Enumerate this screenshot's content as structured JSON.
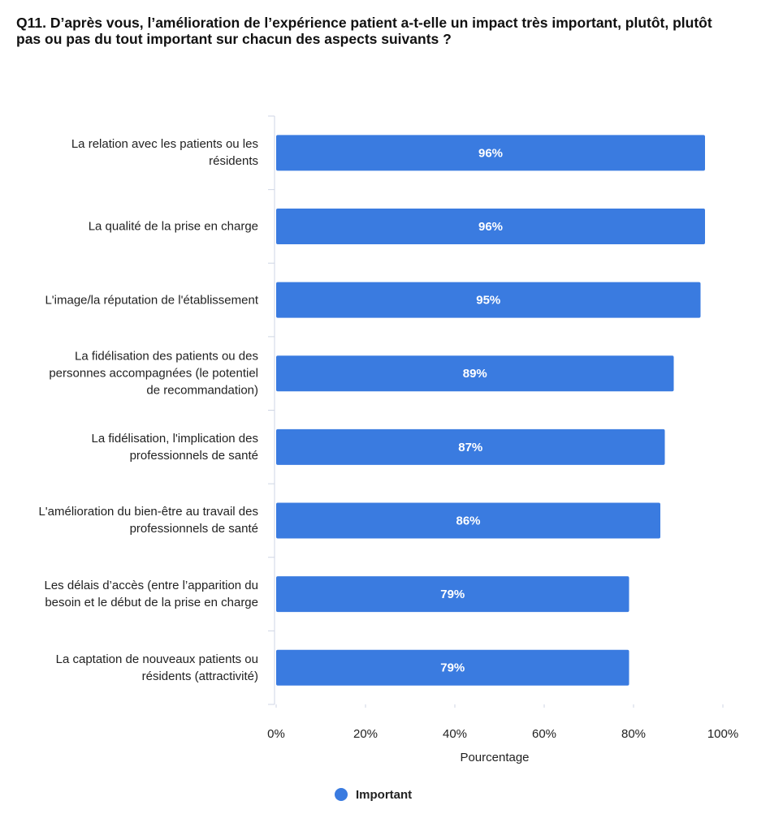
{
  "chart_data": {
    "type": "bar",
    "orientation": "horizontal",
    "title": "Q11. D’après vous, l’amélioration de l’expérience patient a-t-elle un impact très important, plutôt, plutôt pas ou pas du tout important sur chacun des aspects suivants ?",
    "x_label": "Pourcentage",
    "categories": [
      "La relation avec les patients ou les résidents",
      "La qualité de la prise en charge",
      "L'image/la réputation de l'établissement",
      "La fidélisation des patients ou des personnes accompagnées (le potentiel de recommandation)",
      "La fidélisation, l'implication des professionnels de santé",
      "L'amélioration du bien-être au travail des professionnels de santé",
      "Les délais d’accès (entre l’apparition du besoin et le début de la prise en charge",
      "La captation de nouveaux patients ou résidents (attractivité)"
    ],
    "series": [
      {
        "name": "Important",
        "color": "#3a7be0",
        "values": [
          96,
          96,
          95,
          89,
          87,
          86,
          79,
          79
        ],
        "value_labels": [
          "96%",
          "96%",
          "95%",
          "89%",
          "87%",
          "86%",
          "79%",
          "79%"
        ]
      }
    ],
    "xlim": [
      0,
      100
    ],
    "xticks": [
      {
        "value": 0,
        "label": "0%"
      },
      {
        "value": 20,
        "label": "20%"
      },
      {
        "value": 40,
        "label": "40%"
      },
      {
        "value": 60,
        "label": "60%"
      },
      {
        "value": 80,
        "label": "80%"
      },
      {
        "value": 100,
        "label": "100%"
      }
    ],
    "grid": false,
    "legend": "bottom"
  }
}
